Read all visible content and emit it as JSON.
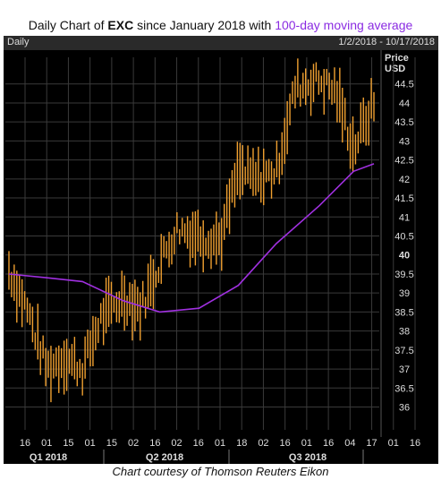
{
  "title": {
    "prefix": "Daily Chart of ",
    "ticker": "EXC",
    "middle": " since January 2018 with ",
    "ma_text": "100-day moving average"
  },
  "header": {
    "period_label": "Daily",
    "date_range": "1/2/2018 - 10/17/2018"
  },
  "caption": "Chart courtesy of Thomson Reuters Eikon",
  "colors": {
    "price": "#f0a030",
    "moving_average": "#a030e0",
    "background": "#000000",
    "grid": "#3a3a3a"
  },
  "chart_data": {
    "type": "line",
    "title": "Daily Chart of EXC since January 2018 with 100-day moving average",
    "ylabel": "Price USD",
    "y_unit_label": [
      "Price",
      "USD"
    ],
    "ylim": [
      35.4,
      45.2
    ],
    "yticks": [
      "36",
      "36.5",
      "37",
      "37.5",
      "38",
      "38.5",
      "39",
      "39.5",
      "40",
      "40.5",
      "41",
      "41.5",
      "42",
      "42.5",
      "43",
      "43.5",
      "44",
      "44.5"
    ],
    "ytick_values": [
      36,
      36.5,
      37,
      37.5,
      38,
      38.5,
      39,
      39.5,
      40,
      40.5,
      41,
      41.5,
      42,
      42.5,
      43,
      43.5,
      44,
      44.5
    ],
    "bold_ytick": "40",
    "x_day_labels": [
      "16",
      "01",
      "15",
      "01",
      "15",
      "02",
      "16",
      "02",
      "16",
      "01",
      "18",
      "02",
      "16",
      "01",
      "16",
      "04",
      "17",
      "01",
      "16"
    ],
    "quarter_labels": [
      "Q1 2018",
      "Q2 2018",
      "Q3 2018"
    ],
    "grid": true,
    "series": [
      {
        "name": "EXC",
        "style": "daily price range (high-low bars)",
        "x": [
          "2018-01-02",
          "2018-01-16",
          "2018-02-01",
          "2018-02-15",
          "2018-03-01",
          "2018-03-15",
          "2018-04-02",
          "2018-04-16",
          "2018-05-01",
          "2018-05-15",
          "2018-06-01",
          "2018-06-18",
          "2018-07-02",
          "2018-07-16",
          "2018-08-01",
          "2018-08-16",
          "2018-09-04",
          "2018-09-17",
          "2018-10-01",
          "2018-10-17"
        ],
        "values": [
          39.6,
          38.6,
          37.0,
          37.3,
          37.0,
          38.3,
          38.9,
          38.6,
          39.8,
          40.7,
          40.5,
          40.4,
          42.2,
          42.0,
          42.2,
          44.4,
          44.6,
          44.3,
          42.8,
          44.0
        ]
      },
      {
        "name": "100-day moving average",
        "x": [
          "2018-01-02",
          "2018-02-01",
          "2018-03-01",
          "2018-04-02",
          "2018-05-01",
          "2018-06-01",
          "2018-07-02",
          "2018-08-01",
          "2018-09-04",
          "2018-10-01",
          "2018-10-17"
        ],
        "values": [
          39.5,
          39.4,
          39.3,
          38.8,
          38.5,
          38.6,
          39.2,
          40.3,
          41.3,
          42.2,
          42.4
        ]
      }
    ]
  }
}
